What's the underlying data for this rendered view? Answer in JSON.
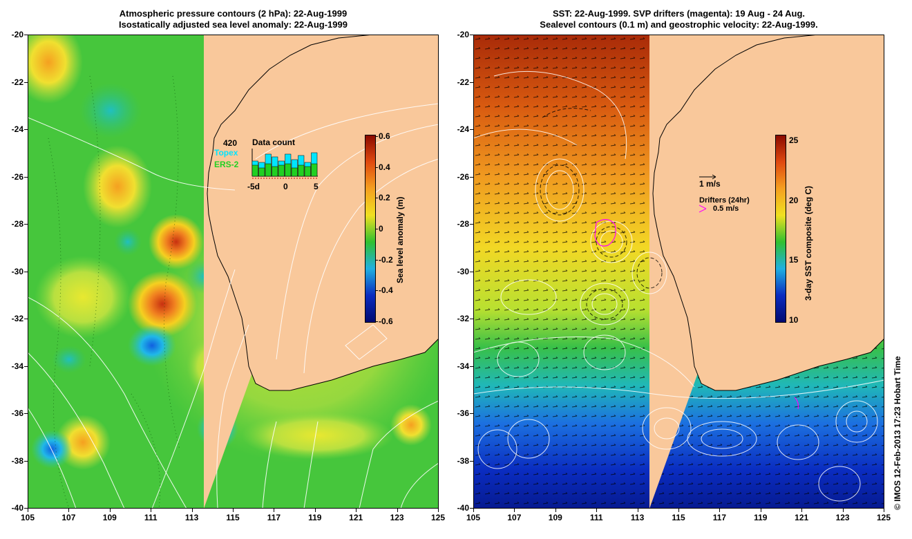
{
  "left_panel": {
    "title_line1": "Atmospheric pressure contours (2 hPa): 22-Aug-1999",
    "title_line2": "Isostatically adjusted sea level anomaly: 22-Aug-1999",
    "colorbar": {
      "title": "Sea level anomaly (m)",
      "ticks": [
        "0.6",
        "0.4",
        "0.2",
        "0",
        "-0.2",
        "-0.4",
        "-0.6"
      ],
      "colors": [
        "#8b0a00",
        "#e04a10",
        "#f5a020",
        "#f0e020",
        "#30c030",
        "#20b0e0",
        "#0a2cc0",
        "#000a70"
      ]
    },
    "inset": {
      "count": "420",
      "topex_label": "Topex",
      "ers_label": "ERS-2",
      "title": "Data count",
      "x_ticks": [
        "-5d",
        "0",
        "5"
      ],
      "topex_color": "#00e5ff",
      "ers_color": "#22d022",
      "topex_values": [
        0.55,
        0.5,
        0.8,
        0.7,
        0.55,
        0.8,
        0.6,
        0.75,
        0.5,
        0.85
      ],
      "ers_values": [
        0.4,
        0.3,
        0.45,
        0.35,
        0.4,
        0.45,
        0.3,
        0.4,
        0.35,
        0.45
      ]
    }
  },
  "right_panel": {
    "title_line1": "SST: 22-Aug-1999. SVP drifters (magenta): 19 Aug - 24 Aug.",
    "title_line2": "Sealevel contours (0.1 m) and geostrophic velocity: 22-Aug-1999.",
    "colorbar": {
      "title": "3-day SST composite (deg C)",
      "ticks": [
        "25",
        "20",
        "15",
        "10"
      ],
      "colors": [
        "#8b0a00",
        "#e04a10",
        "#f5a020",
        "#f0e020",
        "#30c030",
        "#20b0e0",
        "#0a2cc0",
        "#000a70"
      ]
    },
    "legend": {
      "velocity": "1 m/s",
      "drifters_title": "Drifters (24hr)",
      "drifters_speed": "0.5 m/s",
      "drifter_color": "#ff00ff"
    }
  },
  "axes": {
    "y_ticks": [
      "-20",
      "-22",
      "-24",
      "-26",
      "-28",
      "-30",
      "-32",
      "-34",
      "-36",
      "-38",
      "-40"
    ],
    "x_ticks": [
      "105",
      "107",
      "109",
      "111",
      "113",
      "115",
      "117",
      "119",
      "121",
      "123",
      "125"
    ]
  },
  "land_color": "#f9c89b",
  "credit": "© IMOS 12-Feb-2013 17:23 Hobart Time"
}
